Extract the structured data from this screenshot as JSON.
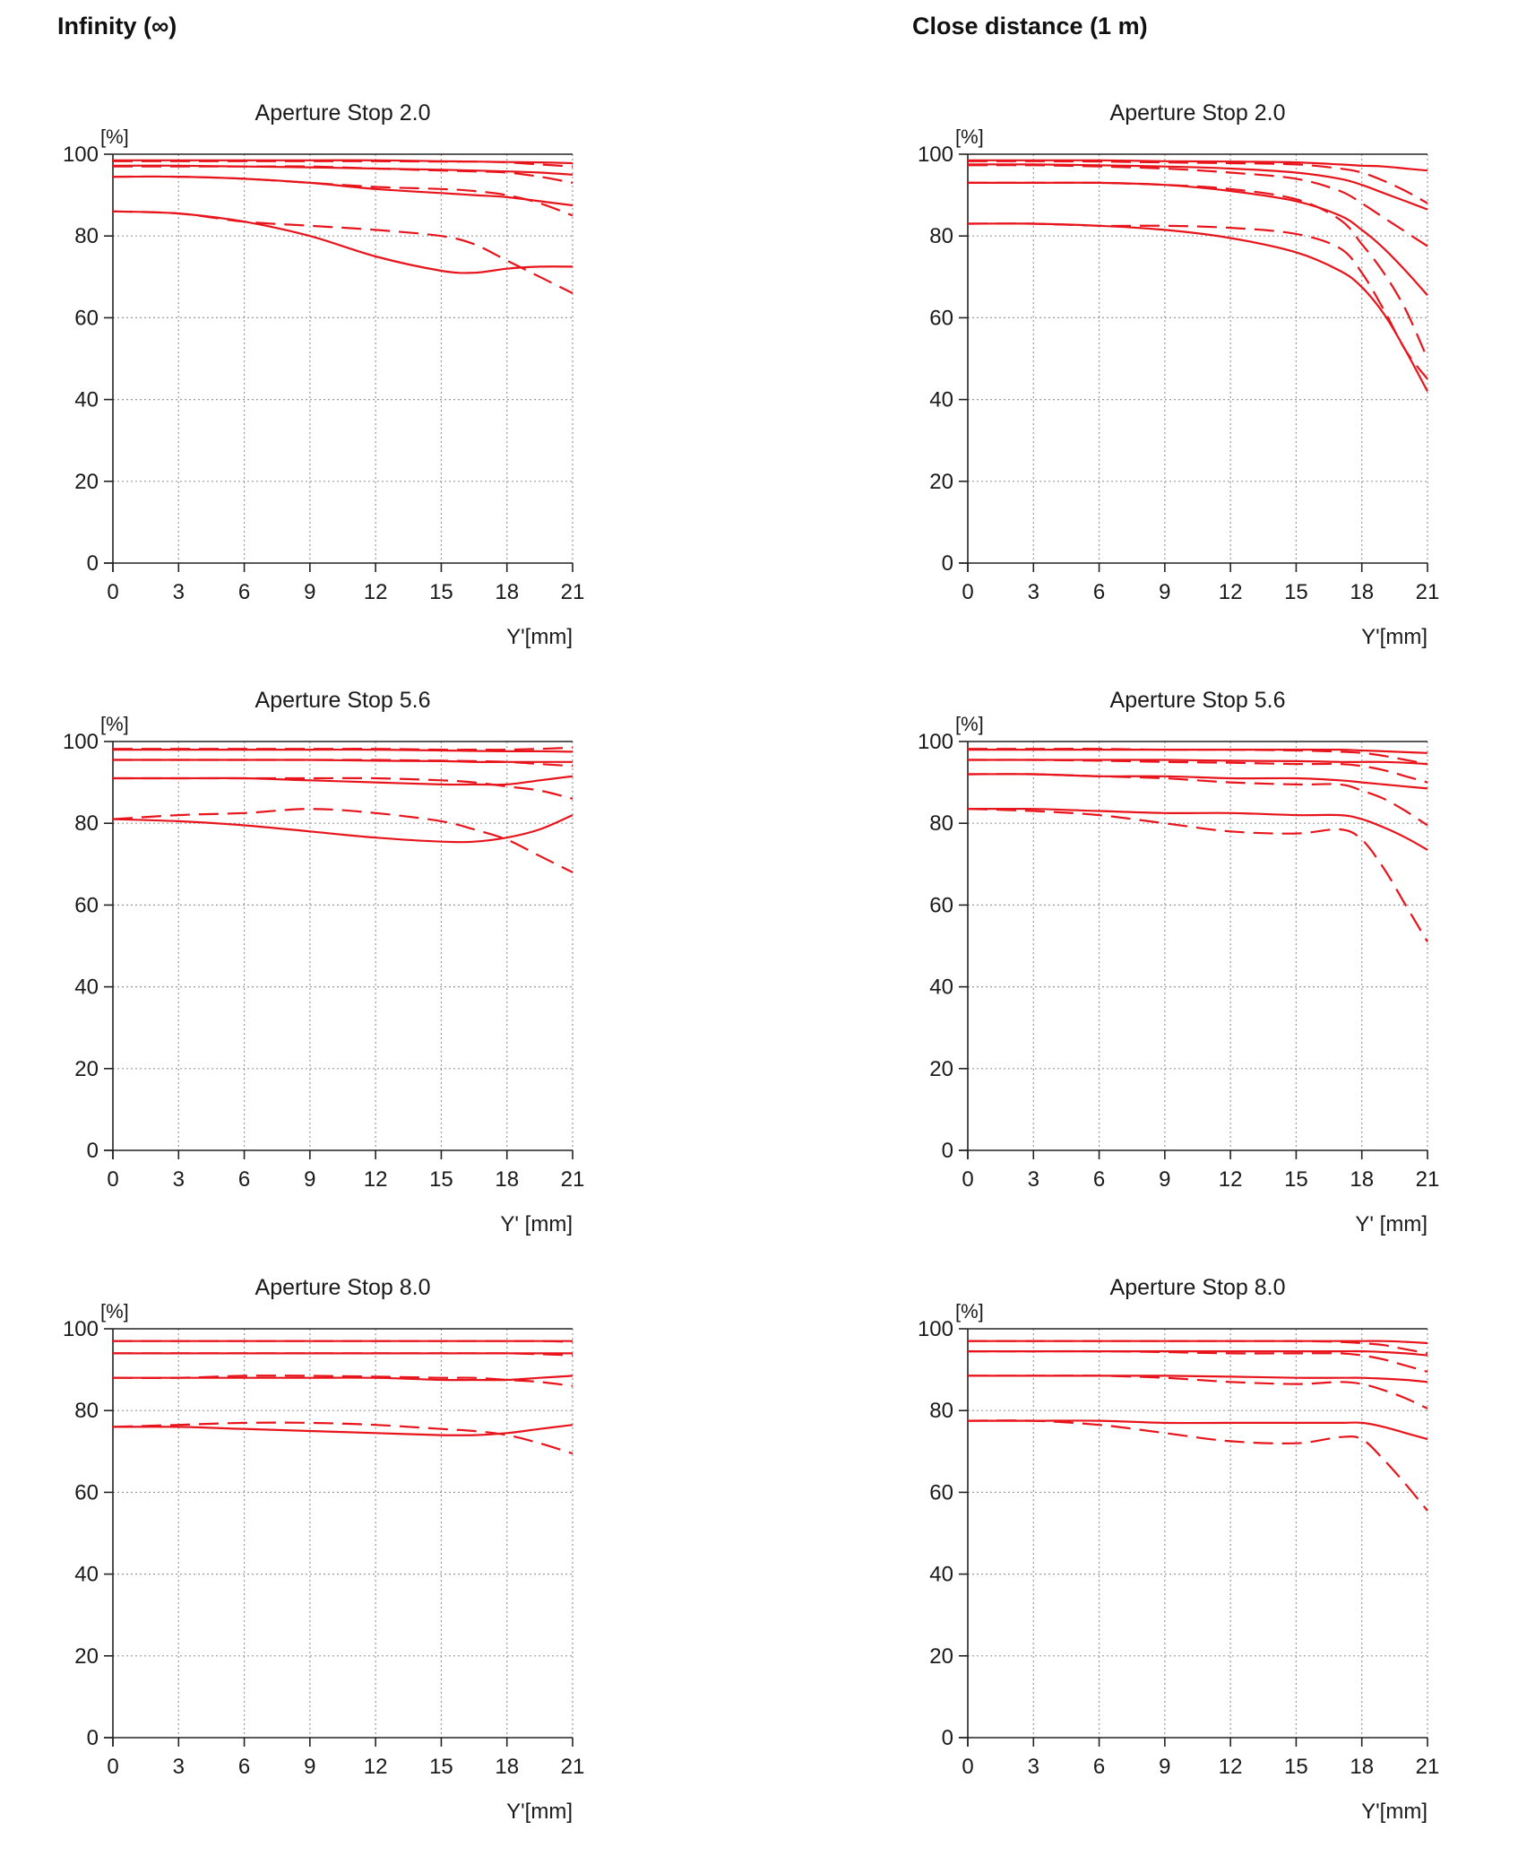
{
  "headings": {
    "left": "Infinity (∞)",
    "right": "Close distance (1 m)"
  },
  "colors": {
    "curve": "#e8141b",
    "axis": "#222222",
    "grid": "#9a9a9a"
  },
  "chart_data": [
    {
      "type": "line",
      "column": "left",
      "row": 0,
      "title": "Aperture Stop 2.0",
      "ylabel": "[%]",
      "xlabel": "Y'[mm]",
      "xlim": [
        0,
        21
      ],
      "ylim": [
        0,
        100
      ],
      "xticks": [
        0,
        3,
        6,
        9,
        12,
        15,
        18,
        21
      ],
      "yticks": [
        0,
        20,
        40,
        60,
        80,
        100
      ],
      "grid": true,
      "x": [
        0,
        3,
        6,
        9,
        12,
        15,
        16.5,
        18,
        19.5,
        21
      ],
      "series": [
        {
          "style": "solid",
          "values": [
            98.5,
            98.5,
            98.5,
            98.5,
            98.5,
            98.3,
            98.2,
            98.1,
            98,
            97.8
          ]
        },
        {
          "style": "dashed",
          "values": [
            98.3,
            98.3,
            98.3,
            98.3,
            98.3,
            98.2,
            98.2,
            98,
            97.5,
            97
          ]
        },
        {
          "style": "solid",
          "values": [
            97.2,
            97.2,
            97,
            96.8,
            96.5,
            96.2,
            96,
            95.8,
            95.5,
            95
          ]
        },
        {
          "style": "dashed",
          "values": [
            97,
            97,
            97,
            97,
            96.5,
            96,
            95.8,
            95.5,
            94.5,
            93
          ]
        },
        {
          "style": "solid",
          "values": [
            94.5,
            94.5,
            94,
            93,
            91.5,
            90.5,
            90,
            89.5,
            88.5,
            87.5
          ]
        },
        {
          "style": "dashed",
          "values": [
            94.5,
            94.5,
            94,
            93,
            92,
            91.5,
            91,
            90,
            88,
            85
          ]
        },
        {
          "style": "solid",
          "values": [
            86,
            85.5,
            83.5,
            80,
            75,
            71.5,
            71,
            72,
            72.5,
            72.5
          ]
        },
        {
          "style": "dashed",
          "values": [
            86,
            85.5,
            83.5,
            82.5,
            81.5,
            80,
            78,
            74,
            70,
            66
          ]
        }
      ]
    },
    {
      "type": "line",
      "column": "right",
      "row": 0,
      "title": "Aperture Stop 2.0",
      "ylabel": "[%]",
      "xlabel": "Y'[mm]",
      "xlim": [
        0,
        21
      ],
      "ylim": [
        0,
        100
      ],
      "xticks": [
        0,
        3,
        6,
        9,
        12,
        15,
        18,
        21
      ],
      "yticks": [
        0,
        20,
        40,
        60,
        80,
        100
      ],
      "grid": true,
      "x": [
        0,
        3,
        6,
        9,
        12,
        15,
        17,
        18,
        19,
        20,
        21
      ],
      "series": [
        {
          "style": "solid",
          "values": [
            98.5,
            98.5,
            98.5,
            98.3,
            98.2,
            98,
            97.5,
            97.2,
            97,
            96.5,
            96
          ]
        },
        {
          "style": "dashed",
          "values": [
            98.3,
            98.3,
            98.2,
            98,
            97.8,
            97.5,
            96.5,
            95.5,
            93.5,
            91,
            88
          ]
        },
        {
          "style": "solid",
          "values": [
            97.5,
            97.5,
            97.3,
            97,
            96.5,
            95.5,
            94,
            92.5,
            90.5,
            88.5,
            86.5
          ]
        },
        {
          "style": "dashed",
          "values": [
            97.3,
            97.3,
            97,
            96.5,
            95.5,
            94,
            91,
            88,
            84.5,
            81,
            77.5
          ]
        },
        {
          "style": "solid",
          "values": [
            93,
            93,
            93,
            92.5,
            91,
            88.5,
            85,
            81.5,
            77,
            71.5,
            65.5
          ]
        },
        {
          "style": "dashed",
          "values": [
            93,
            93,
            93,
            92.5,
            91.5,
            89,
            84,
            78,
            71,
            62,
            50
          ]
        },
        {
          "style": "solid",
          "values": [
            83,
            83,
            82.5,
            81.5,
            79.5,
            76,
            71.5,
            67.5,
            61,
            52,
            42
          ]
        },
        {
          "style": "dashed",
          "values": [
            83,
            83,
            82.5,
            82.5,
            82,
            80.5,
            77,
            71,
            62,
            52,
            45
          ]
        }
      ]
    },
    {
      "type": "line",
      "column": "left",
      "row": 1,
      "title": "Aperture Stop 5.6",
      "ylabel": "[%]",
      "xlabel": "Y' [mm]",
      "xlim": [
        0,
        21
      ],
      "ylim": [
        0,
        100
      ],
      "xticks": [
        0,
        3,
        6,
        9,
        12,
        15,
        18,
        21
      ],
      "yticks": [
        0,
        20,
        40,
        60,
        80,
        100
      ],
      "grid": true,
      "x": [
        0,
        3,
        6,
        9,
        12,
        15,
        16.5,
        18,
        19.5,
        21
      ],
      "series": [
        {
          "style": "solid",
          "values": [
            98,
            98,
            98,
            98,
            98,
            97.8,
            97.7,
            97.6,
            97.6,
            97.5
          ]
        },
        {
          "style": "dashed",
          "values": [
            98.2,
            98.2,
            98.2,
            98.2,
            98.2,
            98,
            98,
            98,
            98.2,
            98.5
          ]
        },
        {
          "style": "solid",
          "values": [
            95.5,
            95.5,
            95.5,
            95.5,
            95.3,
            95.2,
            95,
            95,
            95,
            95
          ]
        },
        {
          "style": "dashed",
          "values": [
            95.5,
            95.5,
            95.5,
            95.5,
            95.5,
            95.3,
            95.2,
            95,
            94.5,
            94
          ]
        },
        {
          "style": "solid",
          "values": [
            91,
            91,
            91,
            90.5,
            90,
            89.5,
            89.5,
            89.5,
            90.5,
            91.5
          ]
        },
        {
          "style": "dashed",
          "values": [
            91,
            91,
            91,
            91,
            91,
            90.5,
            90,
            89,
            88,
            86
          ]
        },
        {
          "style": "solid",
          "values": [
            81,
            80.5,
            79.5,
            78,
            76.5,
            75.5,
            75.5,
            76.5,
            78.5,
            82
          ]
        },
        {
          "style": "dashed",
          "values": [
            81,
            82,
            82.5,
            83.5,
            82.5,
            80.5,
            78.5,
            76,
            72,
            68
          ]
        }
      ]
    },
    {
      "type": "line",
      "column": "right",
      "row": 1,
      "title": "Aperture Stop 5.6",
      "ylabel": "[%]",
      "xlabel": "Y' [mm]",
      "xlim": [
        0,
        21
      ],
      "ylim": [
        0,
        100
      ],
      "xticks": [
        0,
        3,
        6,
        9,
        12,
        15,
        18,
        21
      ],
      "yticks": [
        0,
        20,
        40,
        60,
        80,
        100
      ],
      "grid": true,
      "x": [
        0,
        3,
        6,
        9,
        12,
        15,
        17,
        18,
        19,
        20,
        21
      ],
      "series": [
        {
          "style": "solid",
          "values": [
            98,
            98,
            98,
            98,
            98,
            98,
            98,
            97.8,
            97.6,
            97.4,
            97.2
          ]
        },
        {
          "style": "dashed",
          "values": [
            98.2,
            98.2,
            98.2,
            98,
            98,
            97.8,
            97.5,
            97.2,
            96.5,
            95.5,
            94.5
          ]
        },
        {
          "style": "solid",
          "values": [
            95.5,
            95.5,
            95.5,
            95.5,
            95.3,
            95.2,
            95,
            95,
            95,
            94.8,
            94.5
          ]
        },
        {
          "style": "dashed",
          "values": [
            95.5,
            95.5,
            95.3,
            95,
            94.8,
            94.5,
            94.5,
            94,
            93,
            91.5,
            90
          ]
        },
        {
          "style": "solid",
          "values": [
            92,
            92,
            91.5,
            91.5,
            91,
            91,
            90.5,
            90,
            89.5,
            89,
            88.5
          ]
        },
        {
          "style": "dashed",
          "values": [
            92,
            92,
            91.5,
            91,
            90,
            89.5,
            89.5,
            88,
            86,
            83,
            79.5
          ]
        },
        {
          "style": "solid",
          "values": [
            83.5,
            83.5,
            83,
            82.5,
            82.5,
            82,
            82,
            81,
            79,
            76.5,
            73.5
          ]
        },
        {
          "style": "dashed",
          "values": [
            83.5,
            83,
            82,
            80,
            78,
            77.5,
            78.5,
            76,
            69,
            60,
            51
          ]
        }
      ]
    },
    {
      "type": "line",
      "column": "left",
      "row": 2,
      "title": "Aperture Stop 8.0",
      "ylabel": "[%]",
      "xlabel": "Y'[mm]",
      "xlim": [
        0,
        21
      ],
      "ylim": [
        0,
        100
      ],
      "xticks": [
        0,
        3,
        6,
        9,
        12,
        15,
        18,
        21
      ],
      "yticks": [
        0,
        20,
        40,
        60,
        80,
        100
      ],
      "grid": true,
      "x": [
        0,
        3,
        6,
        9,
        12,
        15,
        16.5,
        18,
        19.5,
        21
      ],
      "series": [
        {
          "style": "solid",
          "values": [
            97,
            97,
            97,
            97,
            97,
            97,
            97,
            97,
            97,
            97
          ]
        },
        {
          "style": "dashed",
          "values": [
            97,
            97,
            97,
            97,
            97,
            97,
            97,
            97,
            97,
            96.8
          ]
        },
        {
          "style": "solid",
          "values": [
            94,
            94,
            94,
            94,
            94,
            94,
            94,
            94,
            94,
            94
          ]
        },
        {
          "style": "dashed",
          "values": [
            94,
            94,
            94,
            94,
            94,
            94,
            94,
            94,
            93.8,
            93.5
          ]
        },
        {
          "style": "solid",
          "values": [
            88,
            88,
            88,
            88,
            88,
            87.5,
            87.5,
            87.5,
            88,
            88.5
          ]
        },
        {
          "style": "dashed",
          "values": [
            88,
            88,
            88.5,
            88.5,
            88.3,
            88,
            88,
            87.5,
            87,
            86
          ]
        },
        {
          "style": "solid",
          "values": [
            76,
            76,
            75.5,
            75,
            74.5,
            74,
            74,
            74.5,
            75.5,
            76.5
          ]
        },
        {
          "style": "dashed",
          "values": [
            76,
            76.5,
            77,
            77,
            76.5,
            75.5,
            75,
            74,
            72,
            69.5
          ]
        }
      ]
    },
    {
      "type": "line",
      "column": "right",
      "row": 2,
      "title": "Aperture Stop 8.0",
      "ylabel": "[%]",
      "xlabel": "Y'[mm]",
      "xlim": [
        0,
        21
      ],
      "ylim": [
        0,
        100
      ],
      "xticks": [
        0,
        3,
        6,
        9,
        12,
        15,
        18,
        21
      ],
      "yticks": [
        0,
        20,
        40,
        60,
        80,
        100
      ],
      "grid": true,
      "x": [
        0,
        3,
        6,
        9,
        12,
        15,
        17,
        18,
        19,
        20,
        21
      ],
      "series": [
        {
          "style": "solid",
          "values": [
            97,
            97,
            97,
            97,
            97,
            97,
            97,
            97,
            97,
            96.8,
            96.5
          ]
        },
        {
          "style": "dashed",
          "values": [
            97,
            97,
            97,
            97,
            97,
            97,
            96.8,
            96.5,
            96,
            95,
            94
          ]
        },
        {
          "style": "solid",
          "values": [
            94.5,
            94.5,
            94.5,
            94.5,
            94.5,
            94.5,
            94.5,
            94.5,
            94.3,
            94,
            93.5
          ]
        },
        {
          "style": "dashed",
          "values": [
            94.5,
            94.5,
            94.5,
            94.3,
            94,
            94,
            94,
            93.5,
            92.5,
            91,
            89.5
          ]
        },
        {
          "style": "solid",
          "values": [
            88.5,
            88.5,
            88.5,
            88.5,
            88.3,
            88,
            88,
            88,
            87.8,
            87.5,
            87
          ]
        },
        {
          "style": "dashed",
          "values": [
            88.5,
            88.5,
            88.5,
            88,
            87,
            86.5,
            87,
            86.5,
            85,
            83,
            80.5
          ]
        },
        {
          "style": "solid",
          "values": [
            77.5,
            77.5,
            77.5,
            77,
            77,
            77,
            77,
            77,
            76,
            74.5,
            73
          ]
        },
        {
          "style": "dashed",
          "values": [
            77.5,
            77.5,
            76.5,
            74.5,
            72.5,
            72,
            73.5,
            73,
            68,
            62,
            55.5
          ]
        }
      ]
    }
  ]
}
